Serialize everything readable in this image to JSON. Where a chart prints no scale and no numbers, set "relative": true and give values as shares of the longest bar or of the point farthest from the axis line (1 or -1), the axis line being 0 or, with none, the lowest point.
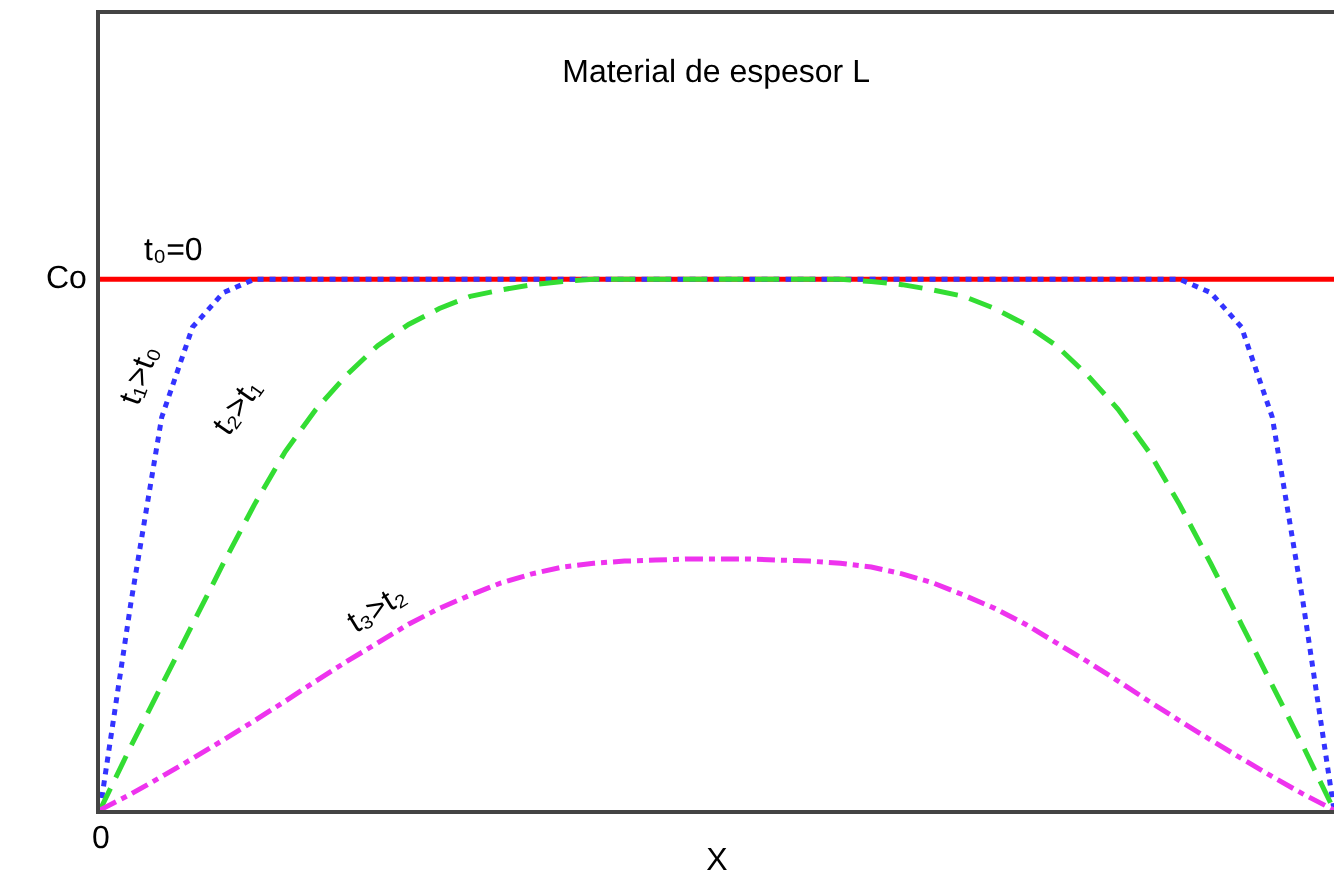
{
  "chart_data": {
    "type": "line",
    "title": "Material de espesor L",
    "xlabel": "X",
    "relative": true,
    "annotations": [
      "Co",
      "0"
    ],
    "grid": false,
    "legend": false,
    "categories": [
      null,
      null,
      null,
      null,
      null,
      null,
      null,
      null,
      null,
      null,
      null,
      null,
      null,
      null,
      null,
      null,
      null,
      null,
      null,
      null,
      null,
      null,
      null,
      null,
      null,
      null,
      null,
      null,
      null,
      null,
      null,
      null,
      null,
      null,
      null,
      null,
      null,
      null,
      null,
      null,
      null
    ],
    "series": [
      {
        "name": "t₀=0",
        "color": "#ff0000",
        "line_style": "solid",
        "values": [
          1,
          1,
          1,
          1,
          1,
          1,
          1,
          1,
          1,
          1,
          1,
          1,
          1,
          1,
          1,
          1,
          1,
          1,
          1,
          1,
          1,
          1,
          1,
          1,
          1,
          1,
          1,
          1,
          1,
          1,
          1,
          1,
          1,
          1,
          1,
          1,
          1,
          1,
          1,
          1,
          1
        ]
      },
      {
        "name": "t₁>t₀",
        "color": "#3333ff",
        "line_style": "dotted",
        "values": [
          0,
          0.39,
          0.74,
          0.91,
          0.975,
          1,
          1,
          1,
          1,
          1,
          1,
          1,
          1,
          1,
          1,
          1,
          1,
          1,
          1,
          1,
          1,
          1,
          1,
          1,
          1,
          1,
          1,
          1,
          1,
          1,
          1,
          1,
          1,
          1,
          1,
          1,
          0.975,
          0.91,
          0.74,
          0.39,
          0
        ]
      },
      {
        "name": "t₂>t₁",
        "color": "#33dd33",
        "line_style": "dashed",
        "values": [
          0,
          0.12,
          0.235,
          0.35,
          0.465,
          0.575,
          0.675,
          0.755,
          0.82,
          0.875,
          0.915,
          0.945,
          0.968,
          0.98,
          0.99,
          0.996,
          1,
          1,
          1,
          1,
          1,
          1,
          1,
          1,
          1,
          0.996,
          0.99,
          0.98,
          0.968,
          0.945,
          0.915,
          0.875,
          0.82,
          0.755,
          0.675,
          0.575,
          0.465,
          0.35,
          0.235,
          0.12,
          0
        ]
      },
      {
        "name": "t₃>t₂",
        "color": "#ee33ee",
        "line_style": "dashdot",
        "values": [
          0,
          0.03,
          0.063,
          0.097,
          0.132,
          0.168,
          0.205,
          0.243,
          0.28,
          0.315,
          0.35,
          0.38,
          0.405,
          0.428,
          0.445,
          0.458,
          0.465,
          0.469,
          0.471,
          0.473,
          0.473,
          0.473,
          0.471,
          0.469,
          0.465,
          0.458,
          0.445,
          0.428,
          0.405,
          0.38,
          0.35,
          0.315,
          0.28,
          0.243,
          0.205,
          0.168,
          0.132,
          0.097,
          0.063,
          0.03,
          0
        ]
      }
    ]
  }
}
